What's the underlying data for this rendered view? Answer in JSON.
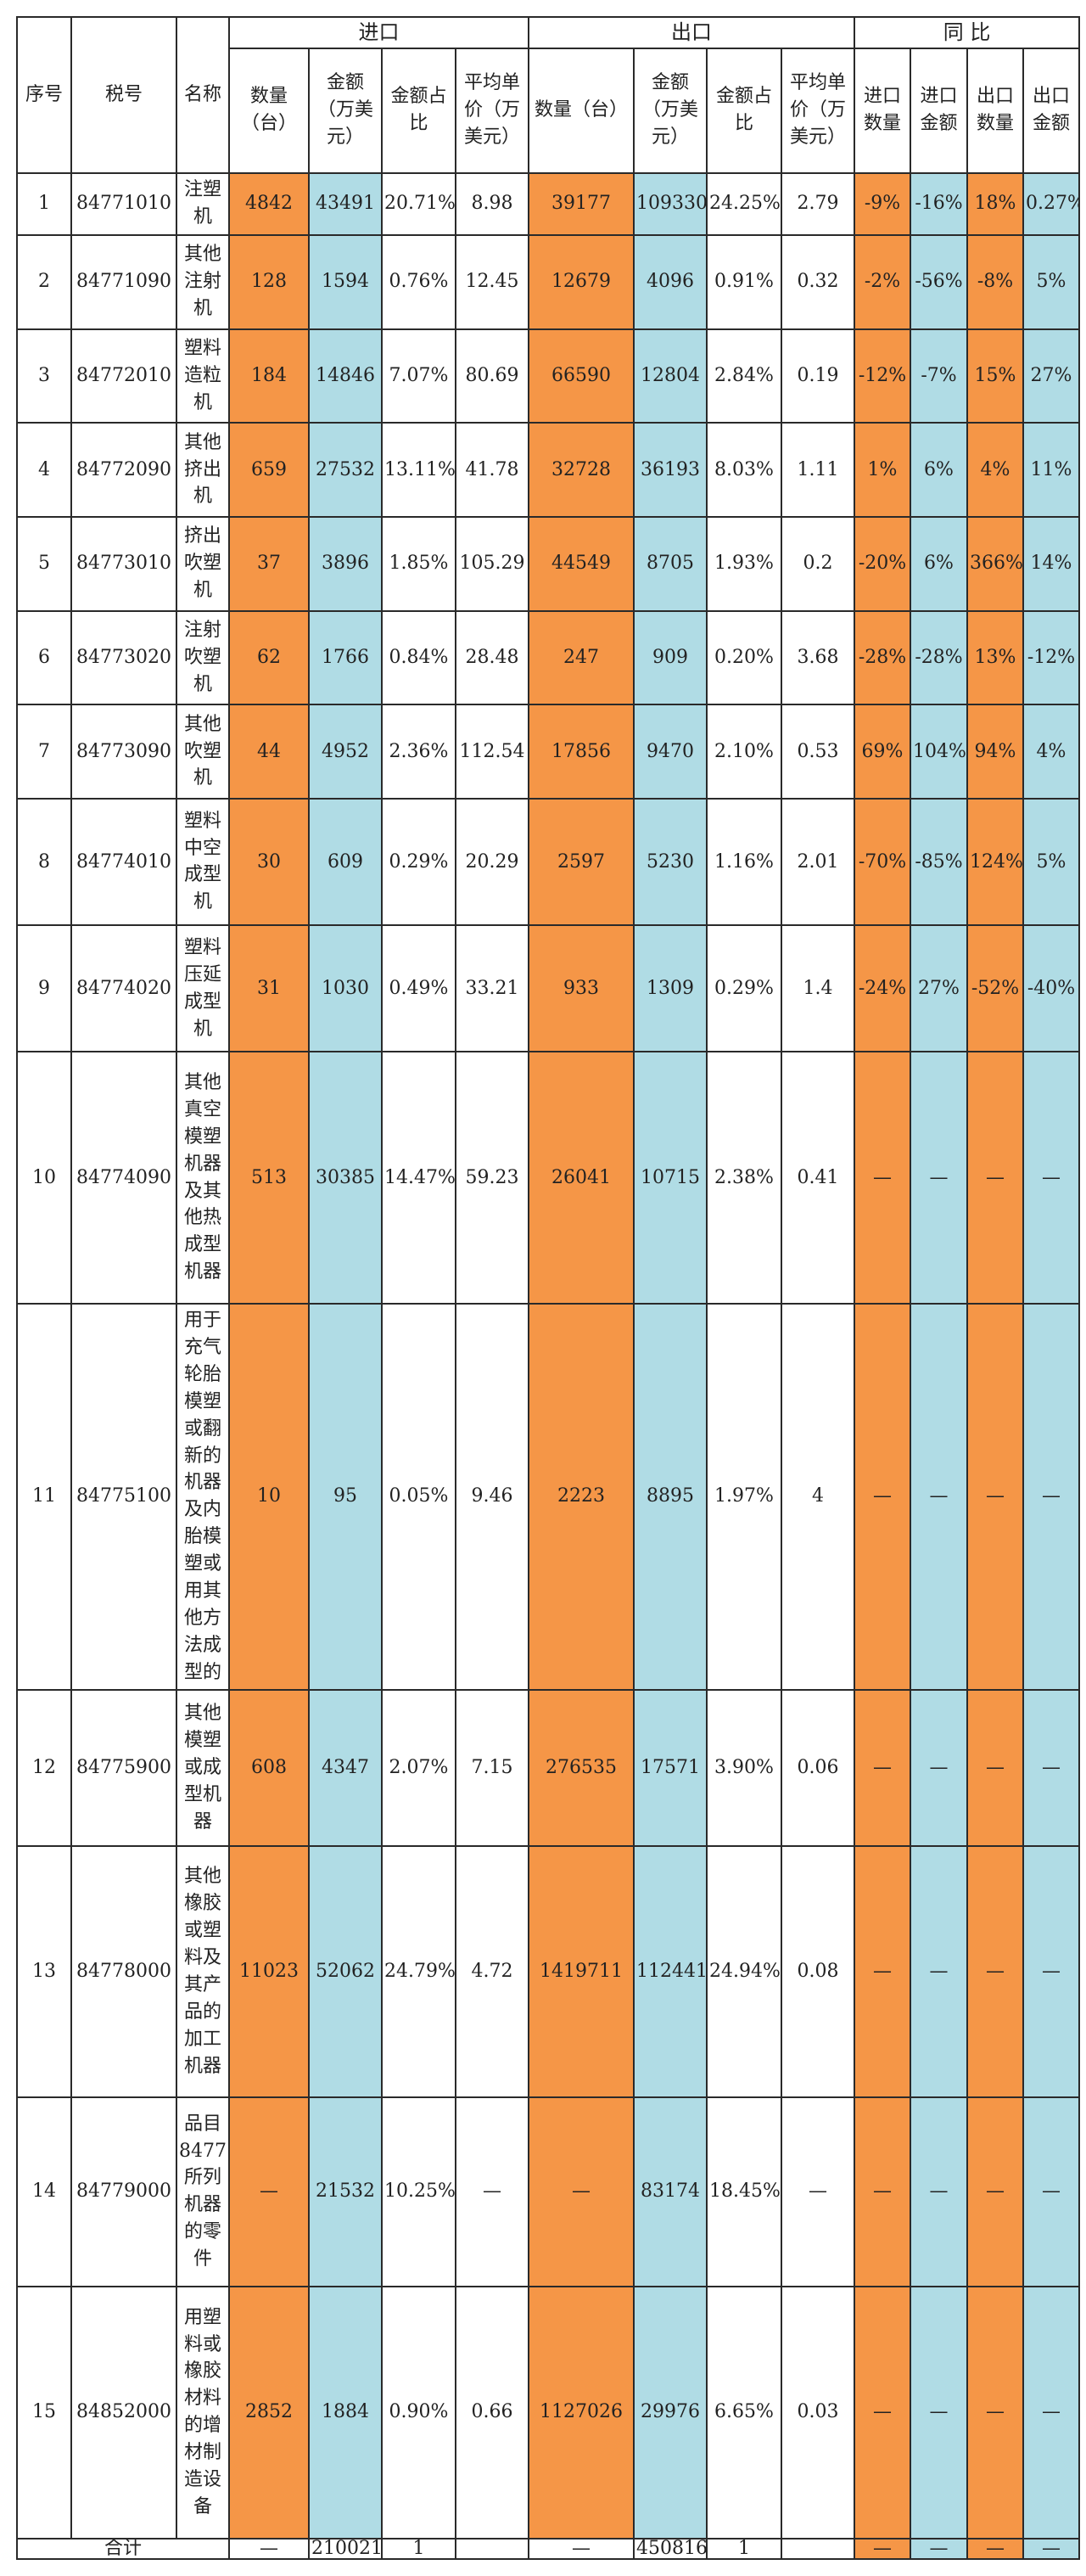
{
  "headers": {
    "seq": "序号",
    "code": "税号",
    "name": "名称",
    "import_group": "进口",
    "export_group": "出口",
    "yoy_group": "同 比",
    "imp_qty": "数量（台）",
    "imp_amt": "金额（万美元）",
    "imp_share": "金额占比",
    "imp_price": "平均单价（万美元）",
    "exp_qty": "数量（台）",
    "exp_amt": "金额（万美元）",
    "exp_share": "金额占比",
    "exp_price": "平均单价（万美元）",
    "yoy_imp_qty": "进口数量",
    "yoy_imp_amt": "进口金额",
    "yoy_exp_qty": "出口数量",
    "yoy_exp_amt": "出口金额"
  },
  "rows": [
    {
      "seq": "1",
      "code": "84771010",
      "name": "注塑机",
      "imp_qty": "4842",
      "imp_amt": "43491",
      "imp_share": "20.71%",
      "imp_price": "8.98",
      "exp_qty": "39177",
      "exp_amt": "109330",
      "exp_share": "24.25%",
      "exp_price": "2.79",
      "yoy_imp_qty": "-9%",
      "yoy_imp_amt": "-16%",
      "yoy_exp_qty": "18%",
      "yoy_exp_amt": "0.27%"
    },
    {
      "seq": "2",
      "code": "84771090",
      "name": "其他注射机",
      "imp_qty": "128",
      "imp_amt": "1594",
      "imp_share": "0.76%",
      "imp_price": "12.45",
      "exp_qty": "12679",
      "exp_amt": "4096",
      "exp_share": "0.91%",
      "exp_price": "0.32",
      "yoy_imp_qty": "-2%",
      "yoy_imp_amt": "-56%",
      "yoy_exp_qty": "-8%",
      "yoy_exp_amt": "5%"
    },
    {
      "seq": "3",
      "code": "84772010",
      "name": "塑料造粒机",
      "imp_qty": "184",
      "imp_amt": "14846",
      "imp_share": "7.07%",
      "imp_price": "80.69",
      "exp_qty": "66590",
      "exp_amt": "12804",
      "exp_share": "2.84%",
      "exp_price": "0.19",
      "yoy_imp_qty": "-12%",
      "yoy_imp_amt": "-7%",
      "yoy_exp_qty": "15%",
      "yoy_exp_amt": "27%"
    },
    {
      "seq": "4",
      "code": "84772090",
      "name": "其他挤出机",
      "imp_qty": "659",
      "imp_amt": "27532",
      "imp_share": "13.11%",
      "imp_price": "41.78",
      "exp_qty": "32728",
      "exp_amt": "36193",
      "exp_share": "8.03%",
      "exp_price": "1.11",
      "yoy_imp_qty": "1%",
      "yoy_imp_amt": "6%",
      "yoy_exp_qty": "4%",
      "yoy_exp_amt": "11%"
    },
    {
      "seq": "5",
      "code": "84773010",
      "name": "挤出吹塑机",
      "imp_qty": "37",
      "imp_amt": "3896",
      "imp_share": "1.85%",
      "imp_price": "105.29",
      "exp_qty": "44549",
      "exp_amt": "8705",
      "exp_share": "1.93%",
      "exp_price": "0.2",
      "yoy_imp_qty": "-20%",
      "yoy_imp_amt": "6%",
      "yoy_exp_qty": "366%",
      "yoy_exp_amt": "14%"
    },
    {
      "seq": "6",
      "code": "84773020",
      "name": "注射吹塑机",
      "imp_qty": "62",
      "imp_amt": "1766",
      "imp_share": "0.84%",
      "imp_price": "28.48",
      "exp_qty": "247",
      "exp_amt": "909",
      "exp_share": "0.20%",
      "exp_price": "3.68",
      "yoy_imp_qty": "-28%",
      "yoy_imp_amt": "-28%",
      "yoy_exp_qty": "13%",
      "yoy_exp_amt": "-12%"
    },
    {
      "seq": "7",
      "code": "84773090",
      "name": "其他吹塑机",
      "imp_qty": "44",
      "imp_amt": "4952",
      "imp_share": "2.36%",
      "imp_price": "112.54",
      "exp_qty": "17856",
      "exp_amt": "9470",
      "exp_share": "2.10%",
      "exp_price": "0.53",
      "yoy_imp_qty": "69%",
      "yoy_imp_amt": "104%",
      "yoy_exp_qty": "94%",
      "yoy_exp_amt": "4%"
    },
    {
      "seq": "8",
      "code": "84774010",
      "name": "塑料中空成型机",
      "imp_qty": "30",
      "imp_amt": "609",
      "imp_share": "0.29%",
      "imp_price": "20.29",
      "exp_qty": "2597",
      "exp_amt": "5230",
      "exp_share": "1.16%",
      "exp_price": "2.01",
      "yoy_imp_qty": "-70%",
      "yoy_imp_amt": "-85%",
      "yoy_exp_qty": "124%",
      "yoy_exp_amt": "5%"
    },
    {
      "seq": "9",
      "code": "84774020",
      "name": "塑料压延成型机",
      "imp_qty": "31",
      "imp_amt": "1030",
      "imp_share": "0.49%",
      "imp_price": "33.21",
      "exp_qty": "933",
      "exp_amt": "1309",
      "exp_share": "0.29%",
      "exp_price": "1.4",
      "yoy_imp_qty": "-24%",
      "yoy_imp_amt": "27%",
      "yoy_exp_qty": "-52%",
      "yoy_exp_amt": "-40%"
    },
    {
      "seq": "10",
      "code": "84774090",
      "name": "其他真空模塑机器及其他热成型机器",
      "imp_qty": "513",
      "imp_amt": "30385",
      "imp_share": "14.47%",
      "imp_price": "59.23",
      "exp_qty": "26041",
      "exp_amt": "10715",
      "exp_share": "2.38%",
      "exp_price": "0.41",
      "yoy_imp_qty": "—",
      "yoy_imp_amt": "—",
      "yoy_exp_qty": "—",
      "yoy_exp_amt": "—"
    },
    {
      "seq": "11",
      "code": "84775100",
      "name": "用于充气轮胎模塑或翻新的机器及内胎模塑或用其他方法成型的",
      "imp_qty": "10",
      "imp_amt": "95",
      "imp_share": "0.05%",
      "imp_price": "9.46",
      "exp_qty": "2223",
      "exp_amt": "8895",
      "exp_share": "1.97%",
      "exp_price": "4",
      "yoy_imp_qty": "—",
      "yoy_imp_amt": "—",
      "yoy_exp_qty": "—",
      "yoy_exp_amt": "—"
    },
    {
      "seq": "12",
      "code": "84775900",
      "name": "其他模塑或成型机器",
      "imp_qty": "608",
      "imp_amt": "4347",
      "imp_share": "2.07%",
      "imp_price": "7.15",
      "exp_qty": "276535",
      "exp_amt": "17571",
      "exp_share": "3.90%",
      "exp_price": "0.06",
      "yoy_imp_qty": "—",
      "yoy_imp_amt": "—",
      "yoy_exp_qty": "—",
      "yoy_exp_amt": "—"
    },
    {
      "seq": "13",
      "code": "84778000",
      "name": "其他橡胶或塑料及其产品的加工机器",
      "imp_qty": "11023",
      "imp_amt": "52062",
      "imp_share": "24.79%",
      "imp_price": "4.72",
      "exp_qty": "1419711",
      "exp_amt": "112441",
      "exp_share": "24.94%",
      "exp_price": "0.08",
      "yoy_imp_qty": "—",
      "yoy_imp_amt": "—",
      "yoy_exp_qty": "—",
      "yoy_exp_amt": "—"
    },
    {
      "seq": "14",
      "code": "84779000",
      "name": "品目8477所列机器的零件",
      "imp_qty": "—",
      "imp_amt": "21532",
      "imp_share": "10.25%",
      "imp_price": "—",
      "exp_qty": "—",
      "exp_amt": "83174",
      "exp_share": "18.45%",
      "exp_price": "—",
      "yoy_imp_qty": "—",
      "yoy_imp_amt": "—",
      "yoy_exp_qty": "—",
      "yoy_exp_amt": "—"
    },
    {
      "seq": "15",
      "code": "84852000",
      "name": "用塑料或橡胶材料的增材制造设备",
      "imp_qty": "2852",
      "imp_amt": "1884",
      "imp_share": "0.90%",
      "imp_price": "0.66",
      "exp_qty": "1127026",
      "exp_amt": "29976",
      "exp_share": "6.65%",
      "exp_price": "0.03",
      "yoy_imp_qty": "—",
      "yoy_imp_amt": "—",
      "yoy_exp_qty": "—",
      "yoy_exp_amt": "—"
    }
  ],
  "total": {
    "label": "合计",
    "imp_qty": "—",
    "imp_amt": "210021",
    "imp_share": "1",
    "imp_price": "",
    "exp_qty": "—",
    "exp_amt": "450816",
    "exp_share": "1",
    "exp_price": "",
    "yoy_imp_qty": "—",
    "yoy_imp_amt": "—",
    "yoy_exp_qty": "—",
    "yoy_exp_amt": "—"
  },
  "colors": {
    "orange": "#f59647",
    "blue": "#b0dce5"
  }
}
